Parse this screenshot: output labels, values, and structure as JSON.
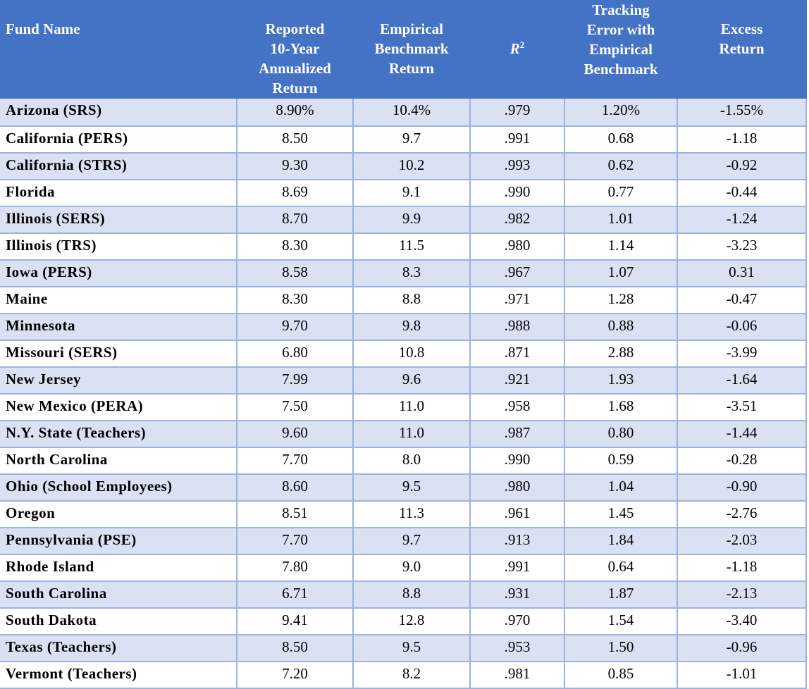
{
  "table": {
    "headers": {
      "fund_name": "Fund Name",
      "reported": [
        "Reported",
        "10-Year",
        "Annualized",
        "Return"
      ],
      "empirical": [
        "Empirical",
        "Benchmark",
        "Return"
      ],
      "r2_base": "R",
      "r2_sup": "2",
      "tracking": [
        "Tracking",
        "Error with",
        "Empirical",
        "Benchmark"
      ],
      "excess": [
        "Excess",
        "Return"
      ]
    },
    "rows": [
      {
        "name": "Arizona (SRS)",
        "reported": "8.90%",
        "empirical": "10.4%",
        "r2": ".979",
        "tracking": "1.20%",
        "excess": "-1.55%"
      },
      {
        "name": "California (PERS)",
        "reported": "8.50",
        "empirical": "9.7",
        "r2": ".991",
        "tracking": "0.68",
        "excess": "-1.18"
      },
      {
        "name": "California (STRS)",
        "reported": "9.30",
        "empirical": "10.2",
        "r2": ".993",
        "tracking": "0.62",
        "excess": "-0.92"
      },
      {
        "name": "Florida",
        "reported": "8.69",
        "empirical": "9.1",
        "r2": ".990",
        "tracking": "0.77",
        "excess": "-0.44"
      },
      {
        "name": "Illinois (SERS)",
        "reported": "8.70",
        "empirical": "9.9",
        "r2": ".982",
        "tracking": "1.01",
        "excess": "-1.24"
      },
      {
        "name": "Illinois (TRS)",
        "reported": "8.30",
        "empirical": "11.5",
        "r2": ".980",
        "tracking": "1.14",
        "excess": "-3.23"
      },
      {
        "name": "Iowa (PERS)",
        "reported": "8.58",
        "empirical": "8.3",
        "r2": ".967",
        "tracking": "1.07",
        "excess": "0.31"
      },
      {
        "name": "Maine",
        "reported": "8.30",
        "empirical": "8.8",
        "r2": ".971",
        "tracking": "1.28",
        "excess": "-0.47"
      },
      {
        "name": "Minnesota",
        "reported": "9.70",
        "empirical": "9.8",
        "r2": ".988",
        "tracking": "0.88",
        "excess": "-0.06"
      },
      {
        "name": "Missouri (SERS)",
        "reported": "6.80",
        "empirical": "10.8",
        "r2": ".871",
        "tracking": "2.88",
        "excess": "-3.99"
      },
      {
        "name": "New Jersey",
        "reported": "7.99",
        "empirical": "9.6",
        "r2": ".921",
        "tracking": "1.93",
        "excess": "-1.64"
      },
      {
        "name": "New Mexico (PERA)",
        "reported": "7.50",
        "empirical": "11.0",
        "r2": ".958",
        "tracking": "1.68",
        "excess": "-3.51"
      },
      {
        "name": "N.Y. State (Teachers)",
        "reported": "9.60",
        "empirical": "11.0",
        "r2": ".987",
        "tracking": "0.80",
        "excess": "-1.44"
      },
      {
        "name": "North Carolina",
        "reported": "7.70",
        "empirical": "8.0",
        "r2": ".990",
        "tracking": "0.59",
        "excess": "-0.28"
      },
      {
        "name": "Ohio (School Employees)",
        "reported": "8.60",
        "empirical": "9.5",
        "r2": ".980",
        "tracking": "1.04",
        "excess": "-0.90"
      },
      {
        "name": "Oregon",
        "reported": "8.51",
        "empirical": "11.3",
        "r2": ".961",
        "tracking": "1.45",
        "excess": "-2.76"
      },
      {
        "name": "Pennsylvania (PSE)",
        "reported": "7.70",
        "empirical": "9.7",
        "r2": ".913",
        "tracking": "1.84",
        "excess": "-2.03"
      },
      {
        "name": "Rhode Island",
        "reported": "7.80",
        "empirical": "9.0",
        "r2": ".991",
        "tracking": "0.64",
        "excess": "-1.18"
      },
      {
        "name": "South Carolina",
        "reported": "6.71",
        "empirical": "8.8",
        "r2": ".931",
        "tracking": "1.87",
        "excess": "-2.13"
      },
      {
        "name": "South Dakota",
        "reported": "9.41",
        "empirical": "12.8",
        "r2": ".970",
        "tracking": "1.54",
        "excess": "-3.40"
      },
      {
        "name": "Texas (Teachers)",
        "reported": "8.50",
        "empirical": "9.5",
        "r2": ".953",
        "tracking": "1.50",
        "excess": "-0.96"
      },
      {
        "name": "Vermont (Teachers)",
        "reported": "7.20",
        "empirical": "8.2",
        "r2": ".981",
        "tracking": "0.85",
        "excess": "-1.01"
      }
    ]
  },
  "colors": {
    "header_bg": "#4472c4",
    "header_text": "#ffffff",
    "band_bg": "#d9e1f2",
    "grid_line": "#9bb3de"
  }
}
